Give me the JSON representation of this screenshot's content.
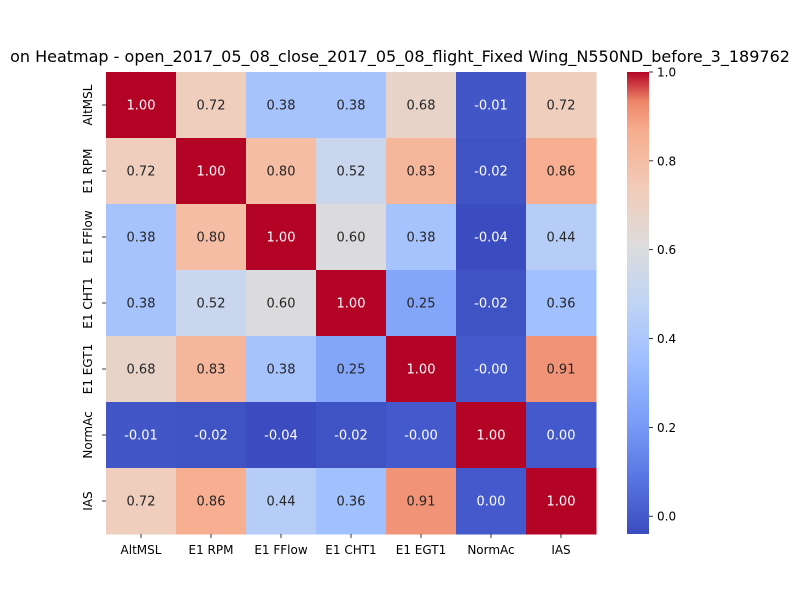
{
  "chart_data": {
    "type": "heatmap",
    "title": "on Heatmap - open_2017_05_08_close_2017_05_08_flight_Fixed Wing_N550ND_before_3_189762",
    "variables": [
      "AltMSL",
      "E1 RPM",
      "E1 FFlow",
      "E1 CHT1",
      "E1 EGT1",
      "NormAc",
      "IAS"
    ],
    "matrix": [
      [
        1.0,
        0.72,
        0.38,
        0.38,
        0.68,
        -0.01,
        0.72
      ],
      [
        0.72,
        1.0,
        0.8,
        0.52,
        0.83,
        -0.02,
        0.86
      ],
      [
        0.38,
        0.8,
        1.0,
        0.6,
        0.38,
        -0.04,
        0.44
      ],
      [
        0.38,
        0.52,
        0.6,
        1.0,
        0.25,
        -0.02,
        0.36
      ],
      [
        0.68,
        0.83,
        0.38,
        0.25,
        1.0,
        -0.0,
        0.91
      ],
      [
        -0.01,
        -0.02,
        -0.04,
        -0.02,
        -0.0,
        1.0,
        0.0
      ],
      [
        0.72,
        0.86,
        0.44,
        0.36,
        0.91,
        0.0,
        1.0
      ]
    ],
    "labels": [
      [
        "1.00",
        "0.72",
        "0.38",
        "0.38",
        "0.68",
        "-0.01",
        "0.72"
      ],
      [
        "0.72",
        "1.00",
        "0.80",
        "0.52",
        "0.83",
        "-0.02",
        "0.86"
      ],
      [
        "0.38",
        "0.80",
        "1.00",
        "0.60",
        "0.38",
        "-0.04",
        "0.44"
      ],
      [
        "0.38",
        "0.52",
        "0.60",
        "1.00",
        "0.25",
        "-0.02",
        "0.36"
      ],
      [
        "0.68",
        "0.83",
        "0.38",
        "0.25",
        "1.00",
        "-0.00",
        "0.91"
      ],
      [
        "-0.01",
        "-0.02",
        "-0.04",
        "-0.02",
        "-0.00",
        "1.00",
        "0.00"
      ],
      [
        "0.72",
        "0.86",
        "0.44",
        "0.36",
        "0.91",
        "0.00",
        "1.00"
      ]
    ],
    "colormap": "coolwarm",
    "vmin": -0.04,
    "vmax": 1.0,
    "colorbar_ticks": [
      0.0,
      0.2,
      0.4,
      0.6,
      0.8,
      1.0
    ],
    "colorbar_tick_labels": [
      "0.0",
      "0.2",
      "0.4",
      "0.6",
      "0.8",
      "1.0"
    ],
    "legend": "colorbar-right"
  }
}
